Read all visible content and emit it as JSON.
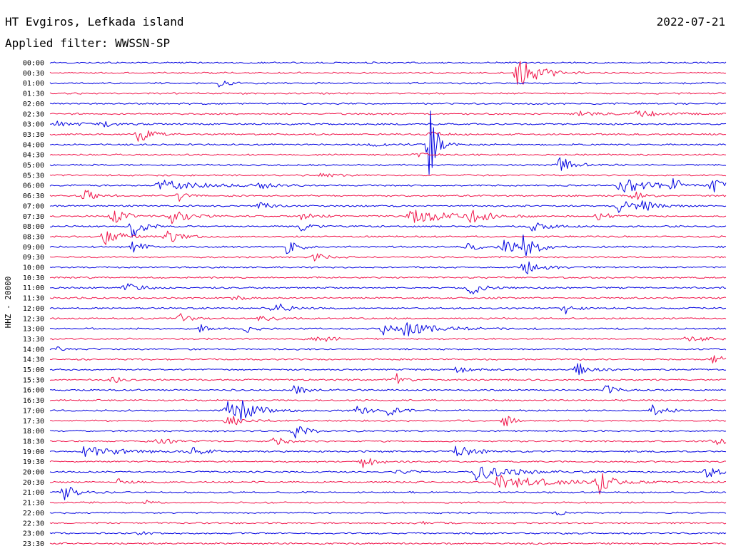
{
  "header": {
    "station": "HT Evgiros, Lefkada island",
    "date": "2022-07-21",
    "filter": "Applied filter: WWSSN-SP"
  },
  "colors": {
    "blue": "#0000e0",
    "red": "#f0144a",
    "text": "#000000"
  },
  "chart_data": {
    "type": "line",
    "subtype": "helicorder",
    "ylabel": "HHZ - 20000",
    "row_labels": [
      "00:00",
      "00:30",
      "01:00",
      "01:30",
      "02:00",
      "02:30",
      "03:00",
      "03:30",
      "04:00",
      "04:30",
      "05:00",
      "05:30",
      "06:00",
      "06:30",
      "07:00",
      "07:30",
      "08:00",
      "08:30",
      "09:00",
      "09:30",
      "10:00",
      "10:30",
      "11:00",
      "11:30",
      "12:00",
      "12:30",
      "13:00",
      "13:30",
      "14:00",
      "14:30",
      "15:00",
      "15:30",
      "16:00",
      "16:30",
      "17:00",
      "17:30",
      "18:00",
      "18:30",
      "19:00",
      "19:30",
      "20:00",
      "20:30",
      "21:00",
      "21:30",
      "22:00",
      "22:30",
      "23:00",
      "23:30"
    ],
    "row_colors": [
      "blue",
      "red"
    ],
    "minutes_per_row": 30,
    "trace_seed": 20220721,
    "events": [
      {
        "row": 1,
        "x": 0.69,
        "amp": 3.6,
        "dur": 0.03
      },
      {
        "row": 2,
        "x": 0.25,
        "amp": 0.8,
        "dur": 0.012
      },
      {
        "row": 5,
        "x": 0.78,
        "amp": 0.6,
        "dur": 0.025
      },
      {
        "row": 5,
        "x": 0.86,
        "amp": 0.8,
        "dur": 0.04
      },
      {
        "row": 6,
        "x": 0.01,
        "amp": 0.8,
        "dur": 0.02
      },
      {
        "row": 6,
        "x": 0.075,
        "amp": 0.7,
        "dur": 0.02
      },
      {
        "row": 7,
        "x": 0.13,
        "amp": 1.8,
        "dur": 0.018
      },
      {
        "row": 7,
        "x": 0.56,
        "amp": 0.5,
        "dur": 0.03
      },
      {
        "row": 8,
        "x": 0.56,
        "amp": 10,
        "dur": 0.01
      },
      {
        "row": 8,
        "x": 0.47,
        "amp": 0.4,
        "dur": 0.03
      },
      {
        "row": 9,
        "x": 0.54,
        "amp": 0.6,
        "dur": 0.015
      },
      {
        "row": 10,
        "x": 0.75,
        "amp": 2.2,
        "dur": 0.02
      },
      {
        "row": 11,
        "x": 0.4,
        "amp": 0.4,
        "dur": 0.02
      },
      {
        "row": 12,
        "x": 0.16,
        "amp": 1.2,
        "dur": 0.06
      },
      {
        "row": 12,
        "x": 0.31,
        "amp": 1.2,
        "dur": 0.015
      },
      {
        "row": 12,
        "x": 0.84,
        "amp": 2.0,
        "dur": 0.04
      },
      {
        "row": 12,
        "x": 0.92,
        "amp": 1.5,
        "dur": 0.015
      },
      {
        "row": 12,
        "x": 0.98,
        "amp": 1.8,
        "dur": 0.012
      },
      {
        "row": 13,
        "x": 0.05,
        "amp": 1.6,
        "dur": 0.015
      },
      {
        "row": 13,
        "x": 0.19,
        "amp": 1.2,
        "dur": 0.01
      },
      {
        "row": 13,
        "x": 0.86,
        "amp": 1.4,
        "dur": 0.015
      },
      {
        "row": 14,
        "x": 0.31,
        "amp": 1.6,
        "dur": 0.012
      },
      {
        "row": 14,
        "x": 0.84,
        "amp": 1.5,
        "dur": 0.02
      },
      {
        "row": 14,
        "x": 0.87,
        "amp": 1.4,
        "dur": 0.02
      },
      {
        "row": 15,
        "x": 0.09,
        "amp": 2.8,
        "dur": 0.015
      },
      {
        "row": 15,
        "x": 0.18,
        "amp": 1.8,
        "dur": 0.02
      },
      {
        "row": 15,
        "x": 0.37,
        "amp": 0.8,
        "dur": 0.02
      },
      {
        "row": 15,
        "x": 0.53,
        "amp": 1.8,
        "dur": 0.05
      },
      {
        "row": 15,
        "x": 0.62,
        "amp": 1.5,
        "dur": 0.02
      },
      {
        "row": 15,
        "x": 0.81,
        "amp": 1.5,
        "dur": 0.015
      },
      {
        "row": 16,
        "x": 0.12,
        "amp": 3.0,
        "dur": 0.015
      },
      {
        "row": 16,
        "x": 0.37,
        "amp": 1.2,
        "dur": 0.015
      },
      {
        "row": 16,
        "x": 0.71,
        "amp": 1.2,
        "dur": 0.02
      },
      {
        "row": 17,
        "x": 0.08,
        "amp": 2.2,
        "dur": 0.02
      },
      {
        "row": 17,
        "x": 0.17,
        "amp": 2.0,
        "dur": 0.02
      },
      {
        "row": 18,
        "x": 0.12,
        "amp": 1.5,
        "dur": 0.015
      },
      {
        "row": 18,
        "x": 0.35,
        "amp": 1.8,
        "dur": 0.015
      },
      {
        "row": 18,
        "x": 0.61,
        "amp": 1.0,
        "dur": 0.02
      },
      {
        "row": 18,
        "x": 0.67,
        "amp": 2.0,
        "dur": 0.015
      },
      {
        "row": 18,
        "x": 0.7,
        "amp": 2.5,
        "dur": 0.02
      },
      {
        "row": 19,
        "x": 0.39,
        "amp": 1.5,
        "dur": 0.01
      },
      {
        "row": 20,
        "x": 0.7,
        "amp": 1.8,
        "dur": 0.02
      },
      {
        "row": 22,
        "x": 0.11,
        "amp": 1.0,
        "dur": 0.02
      },
      {
        "row": 22,
        "x": 0.62,
        "amp": 2.2,
        "dur": 0.015
      },
      {
        "row": 23,
        "x": 0.27,
        "amp": 1.0,
        "dur": 0.015
      },
      {
        "row": 24,
        "x": 0.33,
        "amp": 1.4,
        "dur": 0.02
      },
      {
        "row": 24,
        "x": 0.76,
        "amp": 1.8,
        "dur": 0.012
      },
      {
        "row": 25,
        "x": 0.19,
        "amp": 1.2,
        "dur": 0.015
      },
      {
        "row": 25,
        "x": 0.31,
        "amp": 1.0,
        "dur": 0.015
      },
      {
        "row": 26,
        "x": 0.22,
        "amp": 1.0,
        "dur": 0.012
      },
      {
        "row": 26,
        "x": 0.29,
        "amp": 1.0,
        "dur": 0.012
      },
      {
        "row": 26,
        "x": 0.49,
        "amp": 1.5,
        "dur": 0.015
      },
      {
        "row": 26,
        "x": 0.52,
        "amp": 1.8,
        "dur": 0.04
      },
      {
        "row": 27,
        "x": 0.39,
        "amp": 1.0,
        "dur": 0.02
      },
      {
        "row": 27,
        "x": 0.94,
        "amp": 1.2,
        "dur": 0.02
      },
      {
        "row": 28,
        "x": 0.01,
        "amp": 0.5,
        "dur": 0.02
      },
      {
        "row": 29,
        "x": 0.98,
        "amp": 1.0,
        "dur": 0.02
      },
      {
        "row": 30,
        "x": 0.6,
        "amp": 1.2,
        "dur": 0.012
      },
      {
        "row": 30,
        "x": 0.78,
        "amp": 1.8,
        "dur": 0.015
      },
      {
        "row": 31,
        "x": 0.09,
        "amp": 1.0,
        "dur": 0.012
      },
      {
        "row": 31,
        "x": 0.51,
        "amp": 2.0,
        "dur": 0.012
      },
      {
        "row": 32,
        "x": 0.36,
        "amp": 1.2,
        "dur": 0.015
      },
      {
        "row": 32,
        "x": 0.82,
        "amp": 1.6,
        "dur": 0.015
      },
      {
        "row": 34,
        "x": 0.26,
        "amp": 2.2,
        "dur": 0.02
      },
      {
        "row": 34,
        "x": 0.28,
        "amp": 1.8,
        "dur": 0.025
      },
      {
        "row": 34,
        "x": 0.45,
        "amp": 1.6,
        "dur": 0.015
      },
      {
        "row": 34,
        "x": 0.5,
        "amp": 1.2,
        "dur": 0.015
      },
      {
        "row": 34,
        "x": 0.89,
        "amp": 1.6,
        "dur": 0.015
      },
      {
        "row": 35,
        "x": 0.26,
        "amp": 1.5,
        "dur": 0.02
      },
      {
        "row": 35,
        "x": 0.67,
        "amp": 2.0,
        "dur": 0.012
      },
      {
        "row": 36,
        "x": 0.36,
        "amp": 2.0,
        "dur": 0.015
      },
      {
        "row": 37,
        "x": 0.16,
        "amp": 1.0,
        "dur": 0.015
      },
      {
        "row": 37,
        "x": 0.33,
        "amp": 1.2,
        "dur": 0.015
      },
      {
        "row": 37,
        "x": 0.98,
        "amp": 1.0,
        "dur": 0.02
      },
      {
        "row": 38,
        "x": 0.05,
        "amp": 1.0,
        "dur": 0.06
      },
      {
        "row": 38,
        "x": 0.21,
        "amp": 1.2,
        "dur": 0.015
      },
      {
        "row": 38,
        "x": 0.6,
        "amp": 1.4,
        "dur": 0.025
      },
      {
        "row": 39,
        "x": 0.46,
        "amp": 2.0,
        "dur": 0.015
      },
      {
        "row": 40,
        "x": 0.63,
        "amp": 1.8,
        "dur": 0.05
      },
      {
        "row": 40,
        "x": 0.97,
        "amp": 1.4,
        "dur": 0.015
      },
      {
        "row": 40,
        "x": 0.51,
        "amp": 0.5,
        "dur": 0.03
      },
      {
        "row": 41,
        "x": 0.66,
        "amp": 1.4,
        "dur": 0.08
      },
      {
        "row": 41,
        "x": 0.81,
        "amp": 2.8,
        "dur": 0.015
      },
      {
        "row": 41,
        "x": 0.1,
        "amp": 0.8,
        "dur": 0.015
      },
      {
        "row": 42,
        "x": 0.02,
        "amp": 2.0,
        "dur": 0.015
      },
      {
        "row": 43,
        "x": 0.14,
        "amp": 0.6,
        "dur": 0.01
      },
      {
        "row": 44,
        "x": 0.75,
        "amp": 0.8,
        "dur": 0.008
      },
      {
        "row": 45,
        "x": 0.55,
        "amp": 0.3,
        "dur": 0.02
      },
      {
        "row": 46,
        "x": 0.13,
        "amp": 0.4,
        "dur": 0.012
      }
    ]
  }
}
